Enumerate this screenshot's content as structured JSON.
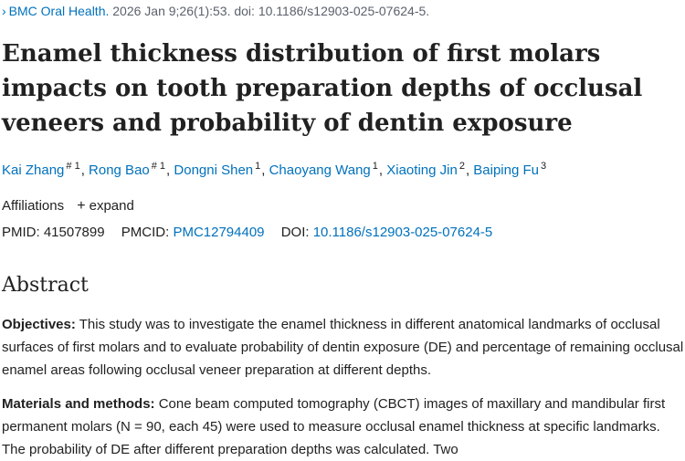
{
  "citation": {
    "chevron": "›",
    "journal": "BMC Oral Health.",
    "details": " 2026 Jan 9;26(1):53. doi: 10.1186/s12903-025-07624-5."
  },
  "title": "Enamel thickness distribution of first molars impacts on tooth preparation depths of occlusal veneers and probability of dentin exposure",
  "authors": [
    {
      "name": "Kai Zhang",
      "sup": "# 1"
    },
    {
      "name": "Rong Bao",
      "sup": "# 1"
    },
    {
      "name": "Dongni Shen",
      "sup": "1"
    },
    {
      "name": "Chaoyang Wang",
      "sup": "1"
    },
    {
      "name": "Xiaoting Jin",
      "sup": "2"
    },
    {
      "name": "Baiping Fu",
      "sup": "3"
    }
  ],
  "affiliations": {
    "label": "Affiliations",
    "expand": "expand",
    "icon": "plus-icon"
  },
  "identifiers": {
    "pmid_label": "PMID:",
    "pmid": "41507899",
    "pmcid_label": "PMCID:",
    "pmcid": "PMC12794409",
    "doi_label": "DOI:",
    "doi": "10.1186/s12903-025-07624-5"
  },
  "abstract": {
    "heading": "Abstract",
    "objectives_label": "Objectives:",
    "objectives_text": " This study was to investigate the enamel thickness in different anatomical landmarks of occlusal surfaces of first molars and to evaluate probability of dentin exposure (DE) and percentage of remaining occlusal enamel areas following occlusal veneer preparation at different depths.",
    "methods_label": "Materials and methods:",
    "methods_text": " Cone beam computed tomography (CBCT) images of maxillary and mandibular first permanent molars (N = 90, each 45) were used to measure occlusal enamel thickness at specific landmarks. The probability of DE after different preparation depths was calculated. Two"
  },
  "colors": {
    "link": "#0071bc",
    "text": "#212121",
    "muted": "#5b616b"
  }
}
